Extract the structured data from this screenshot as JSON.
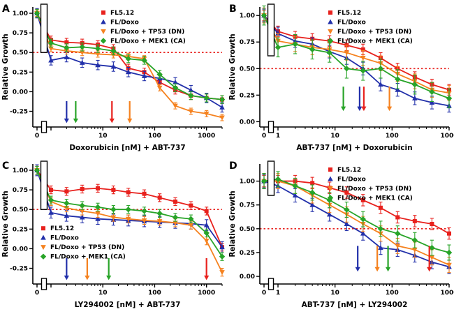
{
  "figure": {
    "background": "#ffffff",
    "axis_color": "#000000",
    "hline_color": "#e8211d",
    "series_meta": [
      {
        "name": "FL5.12",
        "color": "#e8211d",
        "marker": "square"
      },
      {
        "name": "FL/Doxo",
        "color": "#2230aa",
        "marker": "triangle-up"
      },
      {
        "name": "FL/Doxo + TP53 (DN)",
        "color": "#f5821f",
        "marker": "triangle-down"
      },
      {
        "name": "FL/Doxo + MEK1 (CA)",
        "color": "#28a428",
        "marker": "diamond"
      }
    ]
  },
  "chart_data": [
    {
      "type": "line",
      "label": "A",
      "xlabel": "Doxorubicin [nM] + ABT-737",
      "ylabel": "Relative Growth",
      "ylim": [
        -0.45,
        1.08
      ],
      "yticks": [
        1.0,
        0.75,
        0.5,
        0.25,
        0.0,
        -0.25
      ],
      "xmax": 2000,
      "xtick_labels": [
        10,
        100,
        1000
      ],
      "x": [
        0,
        1,
        2,
        4,
        8,
        16,
        31,
        63,
        125,
        250,
        500,
        1000,
        2000
      ],
      "series": [
        {
          "name": "FL5.12",
          "values": [
            1.0,
            0.66,
            0.63,
            0.62,
            0.6,
            0.55,
            0.3,
            0.25,
            0.12,
            0.02,
            -0.05,
            -0.08,
            -0.1
          ],
          "err": 0.05
        },
        {
          "name": "FL/Doxo",
          "values": [
            1.0,
            0.4,
            0.44,
            0.37,
            0.34,
            0.32,
            0.25,
            0.2,
            0.17,
            0.12,
            0.02,
            -0.08,
            -0.2
          ],
          "err": 0.06
        },
        {
          "name": "FL/Doxo + TP53 (DN)",
          "values": [
            1.0,
            0.55,
            0.52,
            0.5,
            0.48,
            0.47,
            0.45,
            0.42,
            0.05,
            -0.18,
            -0.25,
            -0.28,
            -0.33
          ],
          "err": 0.04
        },
        {
          "name": "FL/Doxo + MEK1 (CA)",
          "values": [
            1.0,
            0.62,
            0.56,
            0.57,
            0.55,
            0.52,
            0.42,
            0.4,
            0.22,
            0.05,
            -0.05,
            -0.08,
            -0.1
          ],
          "err": 0.05
        }
      ],
      "hline": 0.5,
      "arrows": [
        {
          "color": "#2230aa",
          "x": 2
        },
        {
          "color": "#28a428",
          "x": 3
        },
        {
          "color": "#e8211d",
          "x": 15
        },
        {
          "color": "#f5821f",
          "x": 33
        }
      ],
      "arrow_y": [
        -0.12,
        -0.4
      ],
      "legend_pos": "top-right",
      "break_rect_bottom": 0.5
    },
    {
      "type": "line",
      "label": "B",
      "xlabel": "ABT-737 [nM] + Doxorubicin",
      "ylabel": "Relative Growth",
      "ylim": [
        -0.05,
        1.08
      ],
      "yticks": [
        1.0,
        0.75,
        0.5,
        0.25,
        0.0
      ],
      "xmax": 1000,
      "xtick_labels": [
        1,
        10,
        100,
        1000
      ],
      "x": [
        0,
        1,
        2,
        4,
        8,
        16,
        31,
        63,
        125,
        250,
        500,
        1000
      ],
      "series": [
        {
          "name": "FL5.12",
          "values": [
            1.0,
            0.85,
            0.8,
            0.78,
            0.76,
            0.72,
            0.68,
            0.6,
            0.5,
            0.42,
            0.35,
            0.3
          ],
          "err": 0.05
        },
        {
          "name": "FL/Doxo",
          "values": [
            1.0,
            0.83,
            0.76,
            0.73,
            0.66,
            0.6,
            0.5,
            0.35,
            0.3,
            0.22,
            0.18,
            0.15
          ],
          "err": 0.06
        },
        {
          "name": "FL/Doxo + TP53 (DN)",
          "values": [
            1.0,
            0.76,
            0.73,
            0.7,
            0.68,
            0.65,
            0.6,
            0.55,
            0.45,
            0.38,
            0.3,
            0.27
          ],
          "err": 0.07
        },
        {
          "name": "FL/Doxo + MEK1 (CA)",
          "values": [
            1.0,
            0.7,
            0.73,
            0.68,
            0.65,
            0.5,
            0.48,
            0.5,
            0.4,
            0.35,
            0.28,
            0.22
          ],
          "err": 0.09
        }
      ],
      "hline": 0.5,
      "arrows": [
        {
          "color": "#28a428",
          "x": 14
        },
        {
          "color": "#2230aa",
          "x": 27
        },
        {
          "color": "#e8211d",
          "x": 32
        },
        {
          "color": "#f5821f",
          "x": 90
        }
      ],
      "arrow_y": [
        0.33,
        0.1
      ],
      "legend_pos": "top-right",
      "break_rect_bottom": 0.62
    },
    {
      "type": "line",
      "label": "C",
      "xlabel": "LY294002 [nM] + ABT-737",
      "ylabel": "Relative Growth",
      "ylim": [
        -0.45,
        1.08
      ],
      "yticks": [
        1.0,
        0.75,
        0.5,
        0.25,
        0.0,
        -0.25
      ],
      "xmax": 2000,
      "xtick_labels": [
        10,
        100,
        1000
      ],
      "x": [
        0,
        1,
        2,
        4,
        8,
        16,
        31,
        63,
        125,
        250,
        500,
        1000,
        2000
      ],
      "series": [
        {
          "name": "FL5.12",
          "values": [
            1.0,
            0.75,
            0.73,
            0.76,
            0.77,
            0.75,
            0.72,
            0.7,
            0.65,
            0.6,
            0.55,
            0.48,
            0.02
          ],
          "err": 0.05
        },
        {
          "name": "FL/Doxo",
          "values": [
            1.0,
            0.46,
            0.42,
            0.4,
            0.38,
            0.37,
            0.36,
            0.35,
            0.34,
            0.33,
            0.32,
            0.3,
            0.02
          ],
          "err": 0.07
        },
        {
          "name": "FL/Doxo + TP53 (DN)",
          "values": [
            1.0,
            0.6,
            0.52,
            0.48,
            0.45,
            0.4,
            0.38,
            0.36,
            0.35,
            0.33,
            0.3,
            0.1,
            -0.3
          ],
          "err": 0.05
        },
        {
          "name": "FL/Doxo + MEK1 (CA)",
          "values": [
            1.0,
            0.62,
            0.58,
            0.55,
            0.53,
            0.5,
            0.5,
            0.48,
            0.45,
            0.4,
            0.38,
            0.2,
            -0.1
          ],
          "err": 0.05
        }
      ],
      "hline": 0.5,
      "arrows": [
        {
          "color": "#2230aa",
          "x": 2
        },
        {
          "color": "#f5821f",
          "x": 5
        },
        {
          "color": "#28a428",
          "x": 13
        },
        {
          "color": "#e8211d",
          "x": 1000
        }
      ],
      "arrow_y": [
        -0.12,
        -0.4
      ],
      "legend_pos": "mid-left",
      "break_rect_bottom": 0.5
    },
    {
      "type": "line",
      "label": "D",
      "xlabel": "ABT-737 [nM] + LY294002",
      "ylabel": "Relative Growth",
      "ylim": [
        -0.08,
        1.18
      ],
      "yticks": [
        1.0,
        0.75,
        0.5,
        0.25,
        0.0
      ],
      "xmax": 1000,
      "xtick_labels": [
        1,
        10,
        100,
        1000
      ],
      "x": [
        0,
        1,
        2,
        4,
        8,
        16,
        31,
        63,
        125,
        250,
        500,
        1000
      ],
      "series": [
        {
          "name": "FL5.12",
          "values": [
            1.0,
            1.0,
            1.0,
            0.98,
            0.93,
            0.88,
            0.8,
            0.72,
            0.62,
            0.58,
            0.55,
            0.45
          ],
          "err": 0.06
        },
        {
          "name": "FL/Doxo",
          "values": [
            1.0,
            0.95,
            0.85,
            0.75,
            0.65,
            0.55,
            0.45,
            0.3,
            0.28,
            0.22,
            0.15,
            0.1
          ],
          "err": 0.07
        },
        {
          "name": "FL/Doxo + TP53 (DN)",
          "values": [
            1.0,
            1.0,
            0.95,
            0.85,
            0.75,
            0.65,
            0.55,
            0.45,
            0.32,
            0.28,
            0.2,
            0.12
          ],
          "err": 0.08
        },
        {
          "name": "FL/Doxo + MEK1 (CA)",
          "values": [
            1.0,
            1.02,
            0.95,
            0.88,
            0.8,
            0.7,
            0.6,
            0.5,
            0.45,
            0.38,
            0.3,
            0.25
          ],
          "err": 0.08
        }
      ],
      "hline": 0.5,
      "arrows": [
        {
          "color": "#2230aa",
          "x": 25
        },
        {
          "color": "#f5821f",
          "x": 55
        },
        {
          "color": "#28a428",
          "x": 85
        },
        {
          "color": "#e8211d",
          "x": 450
        }
      ],
      "arrow_y": [
        0.32,
        0.05
      ],
      "legend_pos": "top-right",
      "break_rect_bottom": 0.85
    }
  ]
}
